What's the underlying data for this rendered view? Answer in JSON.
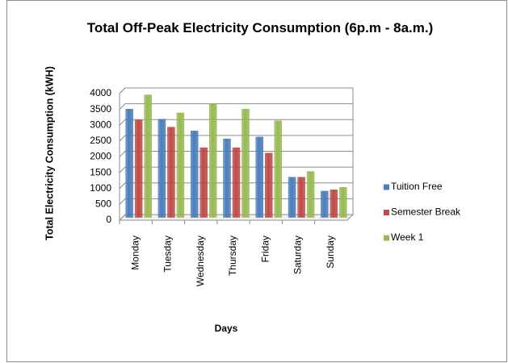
{
  "chart_data": {
    "type": "bar",
    "title": "Total Off-Peak Electricity Consumption (6p.m - 8a.m.)",
    "x_label": "Days",
    "y_label": "Total Electricity Consumption (kWH)",
    "categories": [
      "Monday",
      "Tuesday",
      "Wednesday",
      "Thursday",
      "Friday",
      "Saturday",
      "Sunday"
    ],
    "series": [
      {
        "name": "Tuition Free",
        "color": "#4a7ebb",
        "values": [
          3420,
          3100,
          2730,
          2480,
          2540,
          1270,
          830
        ]
      },
      {
        "name": "Semester Break",
        "color": "#be4b48",
        "values": [
          3080,
          2850,
          2200,
          2200,
          2030,
          1270,
          870
        ]
      },
      {
        "name": "Week 1",
        "color": "#98b954",
        "values": [
          3870,
          3300,
          3600,
          3420,
          3050,
          1450,
          950
        ]
      }
    ],
    "ylim": [
      0,
      4000
    ],
    "yticks": [
      0,
      500,
      1000,
      1500,
      2000,
      2500,
      3000,
      3500,
      4000
    ],
    "grid": true,
    "legend": "right"
  }
}
